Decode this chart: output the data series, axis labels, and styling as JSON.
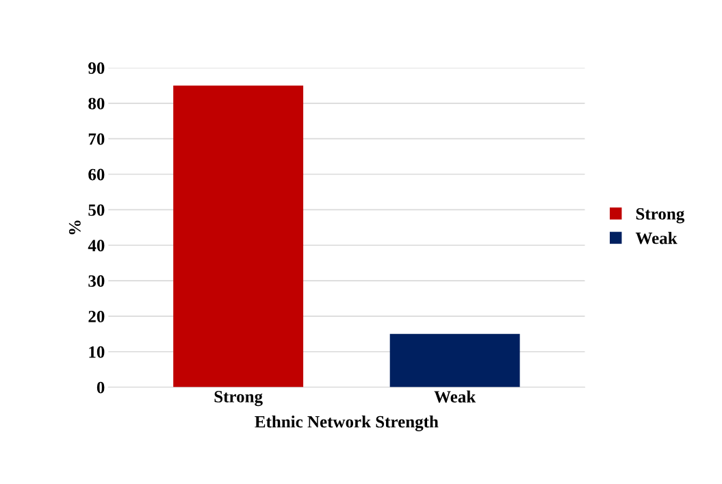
{
  "chart_data": {
    "type": "bar",
    "xlabel": "Ethnic Network Strength",
    "ylabel": "%",
    "categories": [
      "Strong",
      "Weak"
    ],
    "series": [
      {
        "name": "Strong",
        "color": "#c00000",
        "values": [
          85,
          null
        ]
      },
      {
        "name": "Weak",
        "color": "#002060",
        "values": [
          null,
          15
        ]
      }
    ],
    "ylim": [
      0,
      90
    ],
    "yticks": [
      0,
      10,
      20,
      30,
      40,
      50,
      60,
      70,
      80,
      90
    ],
    "grid": "y",
    "legend": "right"
  }
}
